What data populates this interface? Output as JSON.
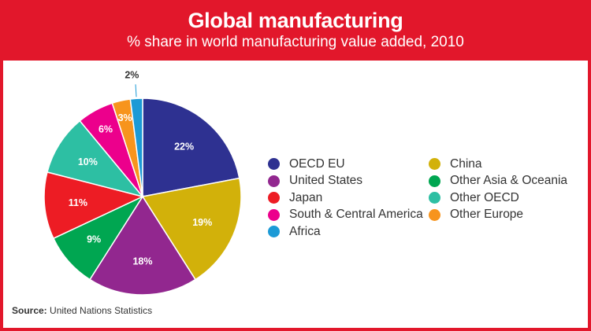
{
  "header": {
    "title": "Global manufacturing",
    "subtitle": "% share in world manufacturing value added, 2010"
  },
  "colors": {
    "frame": "#e2172b"
  },
  "chart_data": {
    "type": "pie",
    "title": "Global manufacturing",
    "subtitle": "% share in world manufacturing value added, 2010",
    "slices": [
      {
        "name": "OECD EU",
        "value": 22,
        "label": "22%",
        "color": "#2e3191"
      },
      {
        "name": "China",
        "value": 19,
        "label": "19%",
        "color": "#d2b10a"
      },
      {
        "name": "United States",
        "value": 18,
        "label": "18%",
        "color": "#92278f"
      },
      {
        "name": "Other Asia & Oceania",
        "value": 9,
        "label": "9%",
        "color": "#00a651"
      },
      {
        "name": "Japan",
        "value": 11,
        "label": "11%",
        "color": "#ed1c24"
      },
      {
        "name": "Other OECD",
        "value": 10,
        "label": "10%",
        "color": "#2dbfa3"
      },
      {
        "name": "South & Central America",
        "value": 6,
        "label": "6%",
        "color": "#ec008c"
      },
      {
        "name": "Other Europe",
        "value": 3,
        "label": "3%",
        "color": "#f7941d"
      },
      {
        "name": "Africa",
        "value": 2,
        "label": "2%",
        "color": "#1c9ad6"
      }
    ],
    "legend_placement": "right"
  },
  "legend": {
    "left": [
      "OECD EU",
      "United States",
      "Japan",
      "South & Central America",
      "Africa"
    ],
    "right": [
      "China",
      "Other Asia & Oceania",
      "Other OECD",
      "Other Europe"
    ]
  },
  "source": {
    "label": "Source:",
    "text": "United Nations Statistics"
  }
}
